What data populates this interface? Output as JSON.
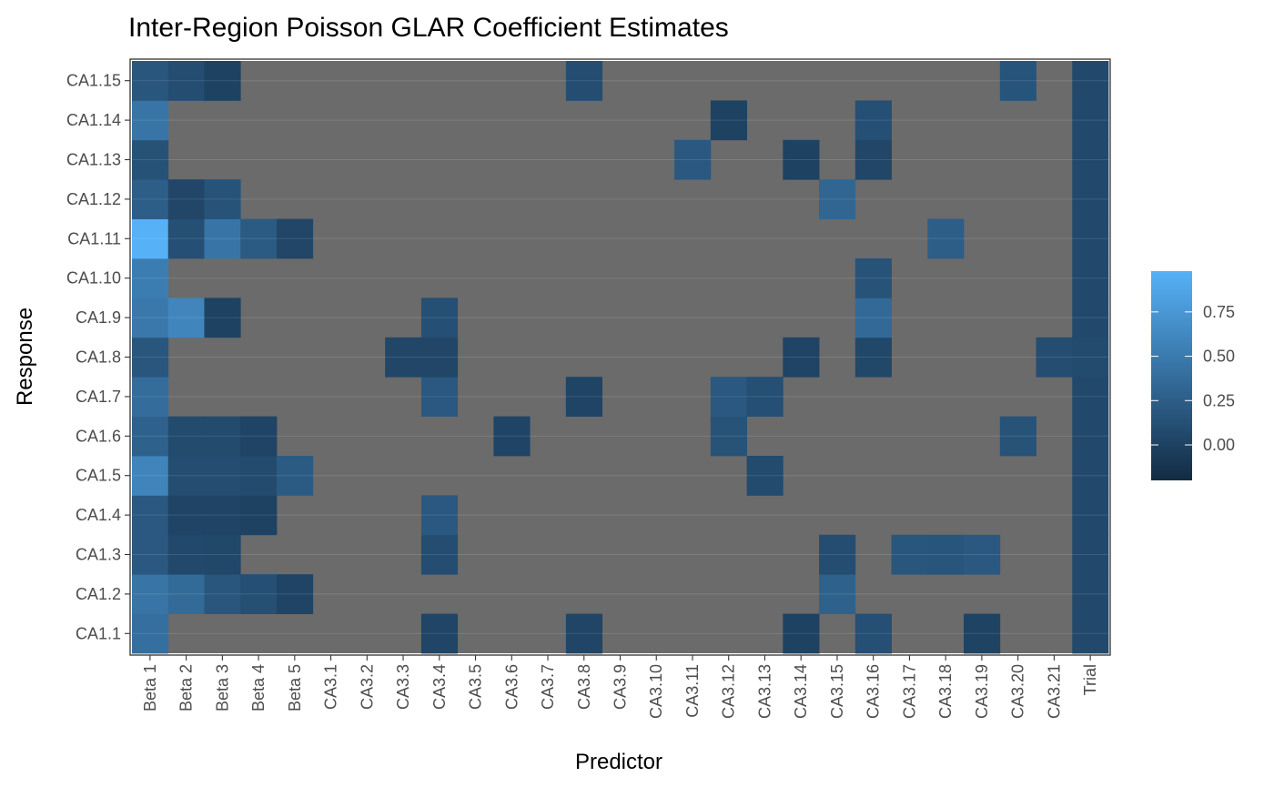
{
  "chart_data": {
    "type": "heatmap",
    "title": "Inter-Region Poisson GLAR Coefficient Estimates",
    "xlabel": "Predictor",
    "ylabel": "Response",
    "x_categories": [
      "Beta 1",
      "Beta 2",
      "Beta 3",
      "Beta 4",
      "Beta 5",
      "CA3.1",
      "CA3.2",
      "CA3.3",
      "CA3.4",
      "CA3.5",
      "CA3.6",
      "CA3.7",
      "CA3.8",
      "CA3.9",
      "CA3.10",
      "CA3.11",
      "CA3.12",
      "CA3.13",
      "CA3.14",
      "CA3.15",
      "CA3.16",
      "CA3.17",
      "CA3.18",
      "CA3.19",
      "CA3.20",
      "CA3.21",
      "Trial"
    ],
    "y_categories": [
      "CA1.1",
      "CA1.2",
      "CA1.3",
      "CA1.4",
      "CA1.5",
      "CA1.6",
      "CA1.7",
      "CA1.8",
      "CA1.9",
      "CA1.10",
      "CA1.11",
      "CA1.12",
      "CA1.13",
      "CA1.14",
      "CA1.15"
    ],
    "missing_color": "#6b6b6b",
    "color_scale": {
      "low": "#132b43",
      "high": "#56b1f7",
      "min": -0.2,
      "max": 0.98
    },
    "legend": {
      "ticks": [
        0.0,
        0.25,
        0.5,
        0.75
      ],
      "tick_labels": [
        "0.00",
        "0.25",
        "0.50",
        "0.75"
      ],
      "position": "right"
    },
    "grid": true,
    "cells": {
      "CA1.15": {
        "Beta 1": 0.18,
        "Beta 2": 0.1,
        "Beta 3": 0.0,
        "CA3.8": 0.1,
        "CA3.20": 0.16,
        "Trial": 0.06
      },
      "CA1.14": {
        "Beta 1": 0.45,
        "CA3.12": 0.0,
        "CA3.16": 0.12,
        "Trial": 0.06
      },
      "CA1.13": {
        "Beta 1": 0.14,
        "CA3.11": 0.2,
        "CA3.14": 0.0,
        "CA3.16": 0.04,
        "Trial": 0.06
      },
      "CA1.12": {
        "Beta 1": 0.25,
        "Beta 2": 0.04,
        "Beta 3": 0.15,
        "CA3.15": 0.32,
        "Trial": 0.06
      },
      "CA1.11": {
        "Beta 1": 0.98,
        "Beta 2": 0.12,
        "Beta 3": 0.45,
        "Beta 4": 0.22,
        "Beta 5": 0.04,
        "CA3.18": 0.25,
        "Trial": 0.06
      },
      "CA1.10": {
        "Beta 1": 0.52,
        "CA3.16": 0.15,
        "Trial": 0.06
      },
      "CA1.9": {
        "Beta 1": 0.48,
        "Beta 2": 0.6,
        "Beta 3": 0.0,
        "CA3.4": 0.12,
        "CA3.16": 0.35,
        "Trial": 0.06
      },
      "CA1.8": {
        "Beta 1": 0.18,
        "CA3.3": 0.04,
        "CA3.4": 0.04,
        "CA3.14": 0.02,
        "CA3.16": 0.05,
        "CA3.21": 0.1,
        "Trial": 0.08
      },
      "CA1.7": {
        "Beta 1": 0.38,
        "CA3.4": 0.2,
        "CA3.8": 0.02,
        "CA3.12": 0.2,
        "CA3.13": 0.12,
        "Trial": 0.06
      },
      "CA1.6": {
        "Beta 1": 0.28,
        "Beta 2": 0.08,
        "Beta 3": 0.08,
        "Beta 4": 0.02,
        "CA3.6": 0.02,
        "CA3.12": 0.15,
        "CA3.20": 0.15,
        "Trial": 0.06
      },
      "CA1.5": {
        "Beta 1": 0.58,
        "Beta 2": 0.1,
        "Beta 3": 0.1,
        "Beta 4": 0.08,
        "Beta 5": 0.22,
        "CA3.13": 0.08,
        "Trial": 0.06
      },
      "CA1.4": {
        "Beta 1": 0.2,
        "Beta 2": 0.02,
        "Beta 3": 0.02,
        "Beta 4": 0.0,
        "CA3.4": 0.2,
        "Trial": 0.06
      },
      "CA1.3": {
        "Beta 1": 0.2,
        "Beta 2": 0.06,
        "Beta 3": 0.05,
        "CA3.4": 0.1,
        "CA3.15": 0.1,
        "CA3.17": 0.18,
        "CA3.18": 0.17,
        "CA3.19": 0.2,
        "Trial": 0.06
      },
      "CA1.2": {
        "Beta 1": 0.45,
        "Beta 2": 0.36,
        "Beta 3": 0.18,
        "Beta 4": 0.12,
        "Beta 5": 0.02,
        "CA3.15": 0.28,
        "Trial": 0.06
      },
      "CA1.1": {
        "Beta 1": 0.4,
        "CA3.4": 0.03,
        "CA3.8": 0.03,
        "CA3.14": 0.0,
        "CA3.16": 0.12,
        "CA3.19": 0.01,
        "Trial": 0.06
      }
    }
  }
}
